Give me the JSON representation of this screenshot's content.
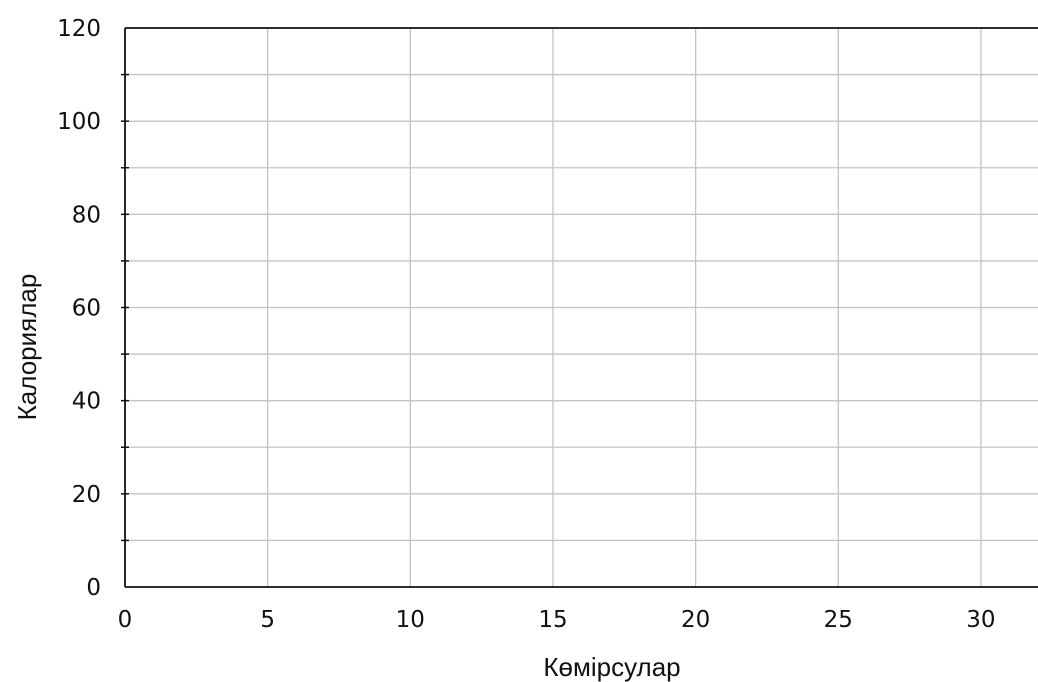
{
  "chart_data": {
    "type": "scatter",
    "title": "",
    "xlabel": "Көмірсулар",
    "ylabel": "Калориялар",
    "xlim": [
      0,
      32
    ],
    "ylim": [
      0,
      120
    ],
    "x_ticks": [
      0,
      5,
      10,
      15,
      20,
      25,
      30
    ],
    "y_ticks": [
      0,
      20,
      40,
      60,
      80,
      100,
      120
    ],
    "x_minor_step": 5,
    "y_minor_step": 10,
    "grid": true,
    "series": [],
    "colors": {
      "axis": "#111111",
      "grid": "#c4c4c4",
      "text": "#111111"
    }
  }
}
